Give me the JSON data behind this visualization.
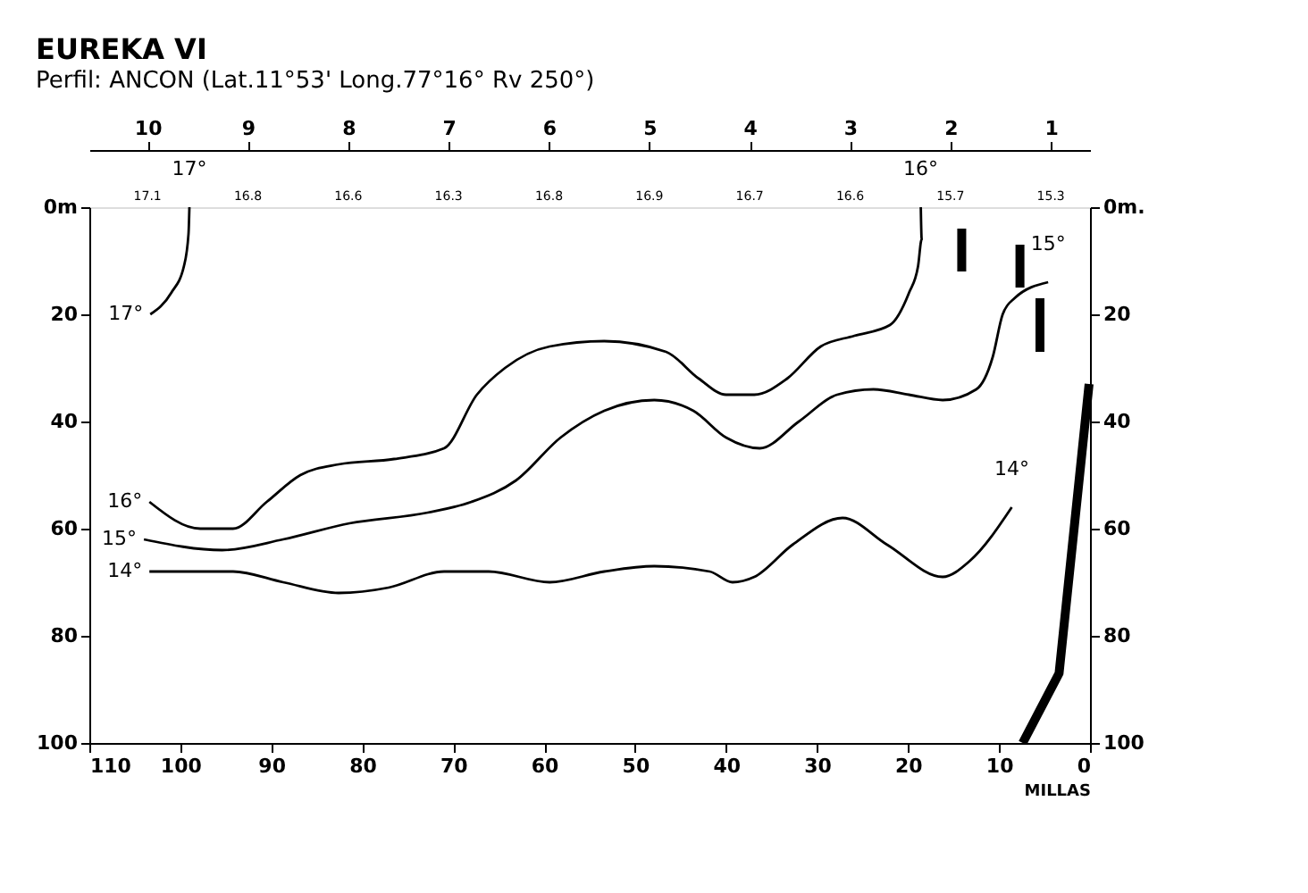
{
  "chart_data": {
    "type": "line",
    "title": "EUREKA VI",
    "subtitle": "Perfil: ANCON    (Lat.11°53' Long.77°16°  Rv 250°)",
    "xlabel": "MILLAS",
    "xlim": [
      110,
      0
    ],
    "xticks": [
      110,
      100,
      90,
      80,
      70,
      60,
      50,
      40,
      30,
      20,
      10,
      0
    ],
    "ylim": [
      100,
      0
    ],
    "yticks": [
      {
        "value": 0,
        "label": "0m"
      },
      20,
      40,
      60,
      80,
      100
    ],
    "y2lim": [
      100,
      0
    ],
    "y2ticks": [
      {
        "value": 0,
        "label": "0m."
      },
      20,
      40,
      60,
      80,
      100
    ],
    "x2lim": [
      10.58,
      0.61
    ],
    "x2ticks": [
      10,
      9,
      8,
      7,
      6,
      5,
      4,
      3,
      2,
      1
    ],
    "grid": false,
    "annotations": [
      "17.1",
      "16.8",
      "16.6",
      "16.3",
      "16.8",
      "16.9",
      "16.7",
      "16.6",
      "15.7",
      "15.3"
    ],
    "series": [
      {
        "name": "17°",
        "color": "#000000",
        "x": [
          103.3,
          101,
          99.6,
          99.1,
          99.0
        ],
        "values": [
          20,
          16,
          11,
          5,
          0
        ]
      },
      {
        "name": "16°",
        "color": "#000000",
        "x": [
          103.4,
          97.8,
          94.2,
          90.5,
          86.8,
          82.6,
          76.5,
          71.0,
          67.4,
          64.3,
          59.4,
          53.4,
          46.6,
          43.0,
          40.0,
          36.9,
          33.3,
          29.6,
          25.9,
          22.0,
          19.9,
          18.9,
          18.5,
          18.6
        ],
        "values": [
          55,
          60,
          60,
          55,
          50,
          48,
          47,
          45,
          35,
          30,
          26,
          25,
          27,
          32,
          35,
          35,
          32,
          26,
          24,
          22,
          16,
          11,
          6,
          0
        ]
      },
      {
        "name": "15°",
        "color": "#000000",
        "x": [
          104.0,
          95.4,
          88.7,
          81.4,
          72.8,
          68.0,
          63.1,
          58.2,
          53.4,
          47.9,
          43.6,
          40.0,
          36.3,
          32.0,
          27.8,
          23.8,
          19.9,
          16.2,
          12.5,
          10.7,
          9.6,
          8.3,
          4.6
        ],
        "values": [
          62,
          64,
          62,
          59,
          57,
          55,
          51,
          43,
          38,
          36,
          38,
          43,
          45,
          40,
          35,
          34,
          35,
          36,
          34,
          28,
          20,
          17,
          14
        ]
      },
      {
        "name": "14°",
        "color": "#000000",
        "x": [
          103.4,
          94.2,
          88.7,
          82.6,
          77.1,
          71.0,
          66.1,
          59.4,
          53.4,
          47.9,
          41.8,
          39.3,
          36.9,
          32.7,
          27.2,
          22.3,
          16.2,
          13.2,
          8.6
        ],
        "values": [
          68,
          68,
          70,
          72,
          71,
          68,
          68,
          70,
          68,
          67,
          68,
          70,
          69,
          63,
          58,
          63,
          69,
          66,
          56
        ]
      },
      {
        "color": "#000000",
        "x": [
          0.1,
          3.4,
          7.4
        ],
        "values": [
          33,
          87,
          100
        ]
      },
      {
        "color": "#000000",
        "x": [
          14.1,
          14.1,
          10.0,
          7.7,
          7.7,
          6.5,
          5.5,
          5.5
        ],
        "values": [
          4,
          12,
          null,
          7,
          15,
          null,
          17,
          27
        ]
      }
    ]
  }
}
